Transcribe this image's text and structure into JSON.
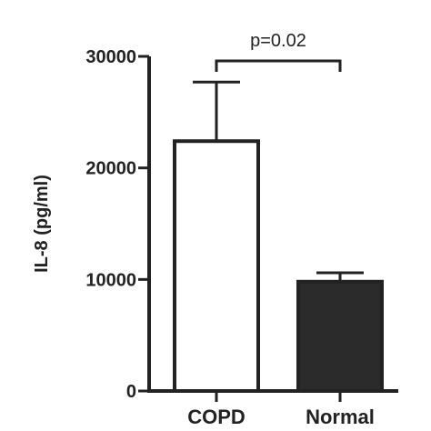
{
  "chart_data": {
    "type": "bar",
    "categories": [
      "COPD",
      "Normal"
    ],
    "values": [
      22400,
      9800
    ],
    "error_upper": [
      27700,
      10600
    ],
    "ylabel": "IL-8 (pg/ml)",
    "xlabel": "",
    "ylim": [
      0,
      30000
    ],
    "yticks": [
      0,
      10000,
      20000,
      30000
    ],
    "ytick_labels": [
      "0",
      "10000",
      "20000",
      "30000"
    ],
    "bar_fills": [
      "#ffffff",
      "#2b2b2b"
    ],
    "bar_stroke": "#222222",
    "significance": {
      "from": 0,
      "to": 1,
      "label": "p=0.02"
    },
    "grid": false,
    "legend": "none"
  }
}
